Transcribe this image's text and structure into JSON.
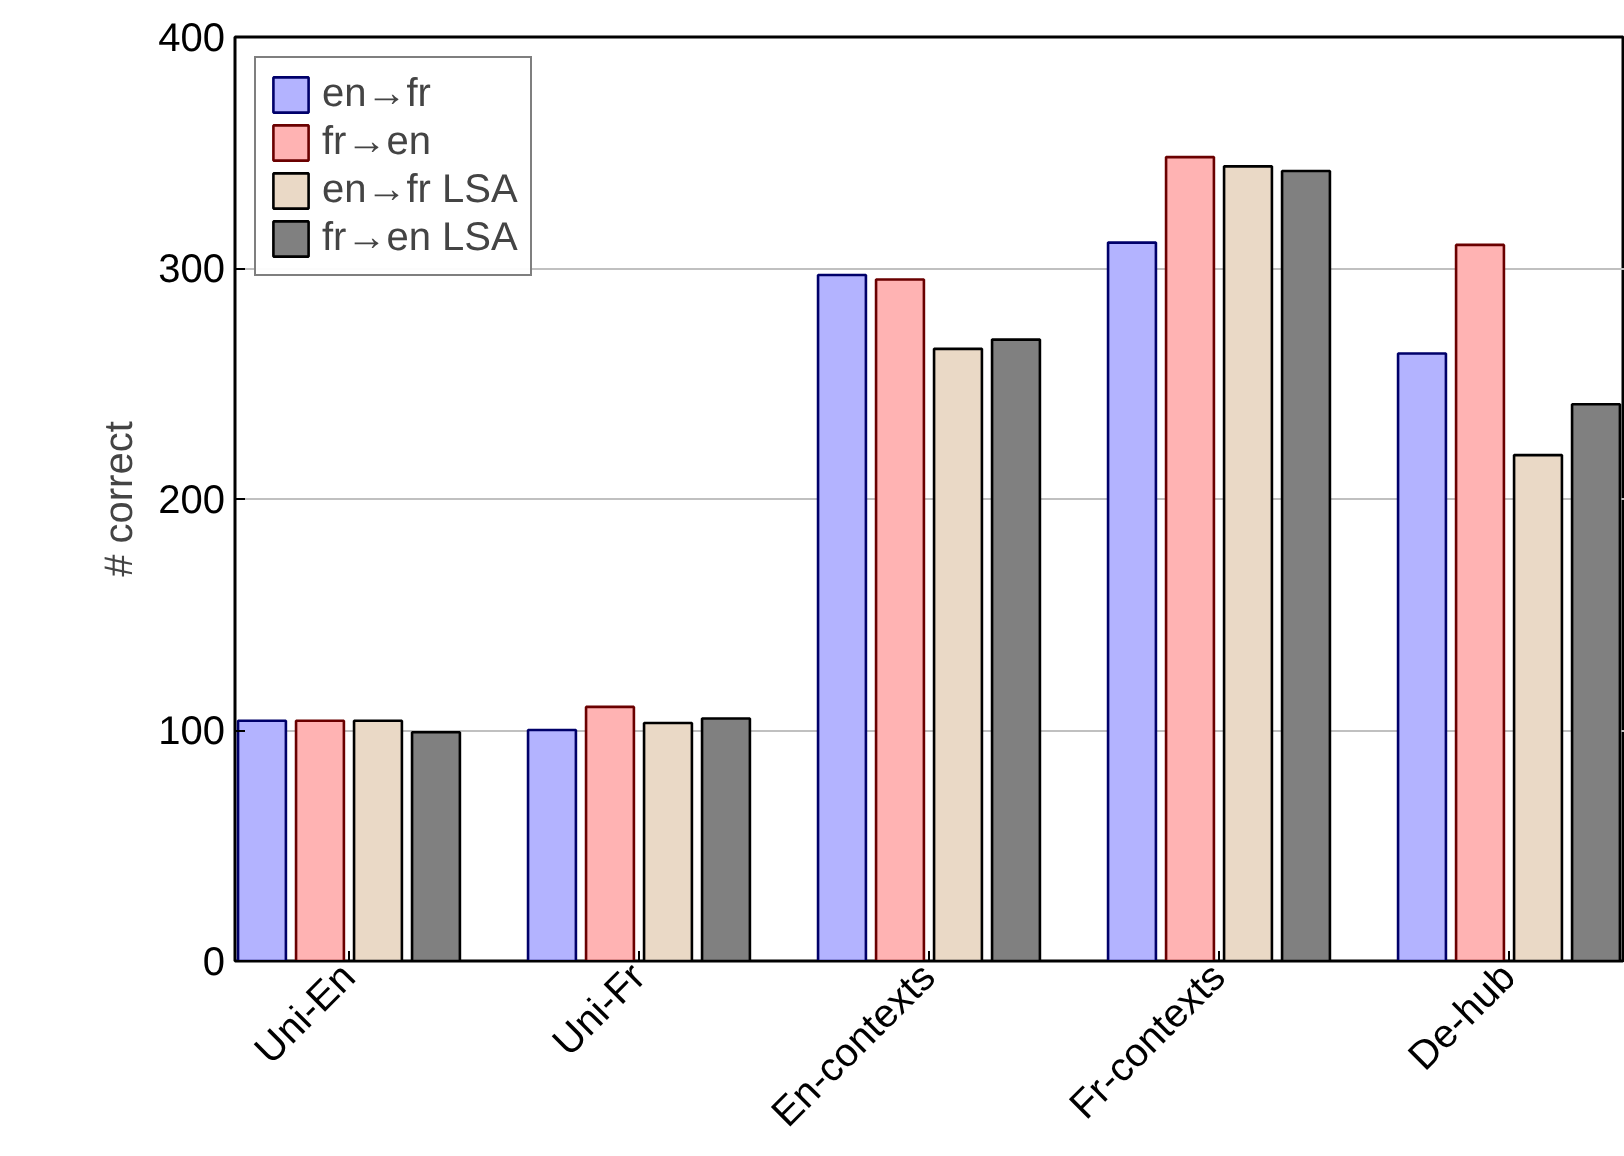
{
  "chart_data": {
    "type": "bar",
    "ylabel": "# correct",
    "categories": [
      "Uni-En",
      "Uni-Fr",
      "En-contexts",
      "Fr-contexts",
      "De-hub"
    ],
    "series": [
      {
        "name": "en→fr",
        "color": "#b3b3ff",
        "values": [
          104,
          100,
          297,
          311,
          263
        ]
      },
      {
        "name": "fr→en",
        "color": "#ffb3b3",
        "values": [
          104,
          110,
          295,
          348,
          310
        ]
      },
      {
        "name": "en→fr LSA",
        "color": "#ead9c6",
        "values": [
          104,
          103,
          265,
          344,
          219
        ]
      },
      {
        "name": "fr→en LSA",
        "color": "#808080",
        "values": [
          99,
          105,
          269,
          342,
          241
        ]
      }
    ],
    "ylim": [
      0,
      400
    ],
    "yticks": [
      0,
      100,
      200,
      300,
      400
    ],
    "grid": "y",
    "legend": "top left"
  }
}
